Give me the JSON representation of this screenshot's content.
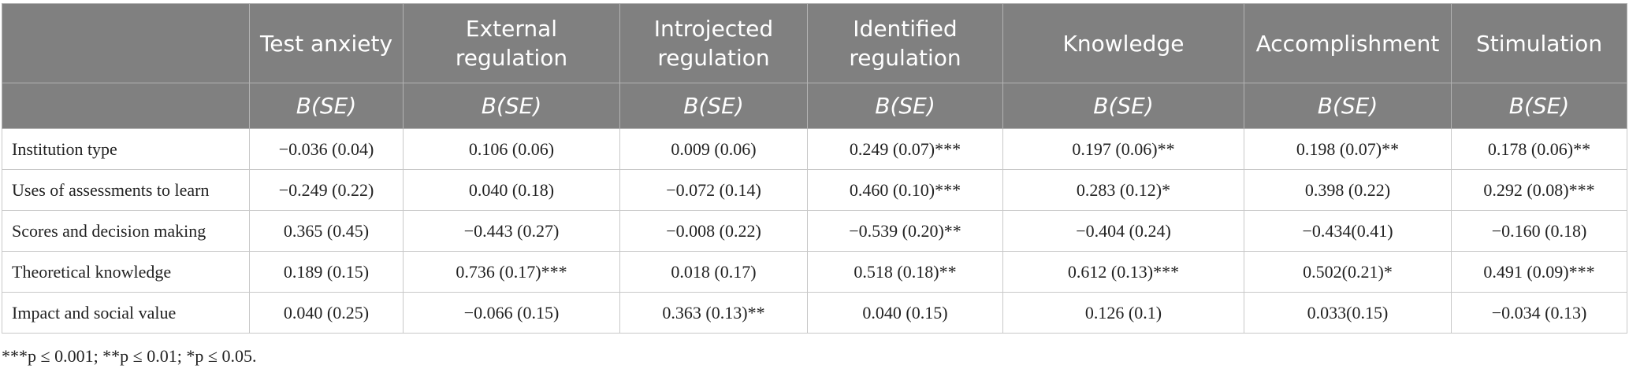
{
  "table": {
    "columns": [
      "Test anxiety",
      "External regulation",
      "Introjected regulation",
      "Identified regulation",
      "Knowledge",
      "Accomplishment",
      "Stimulation"
    ],
    "subheader": [
      "B(SE)",
      "B(SE)",
      "B(SE)",
      "B(SE)",
      "B(SE)",
      "B(SE)",
      "B(SE)"
    ],
    "rows": [
      {
        "label": "Institution type",
        "cells": [
          "−0.036 (0.04)",
          "0.106 (0.06)",
          "0.009 (0.06)",
          "0.249 (0.07)***",
          "0.197 (0.06)**",
          "0.198 (0.07)**",
          "0.178 (0.06)**"
        ]
      },
      {
        "label": "Uses of assessments to learn",
        "cells": [
          "−0.249 (0.22)",
          "0.040 (0.18)",
          "−0.072 (0.14)",
          "0.460 (0.10)***",
          "0.283 (0.12)*",
          "0.398 (0.22)",
          "0.292 (0.08)***"
        ]
      },
      {
        "label": "Scores and decision making",
        "cells": [
          "0.365 (0.45)",
          "−0.443 (0.27)",
          "−0.008 (0.22)",
          "−0.539 (0.20)**",
          "−0.404 (0.24)",
          "−0.434(0.41)",
          "−0.160 (0.18)"
        ]
      },
      {
        "label": "Theoretical knowledge",
        "cells": [
          "0.189 (0.15)",
          "0.736 (0.17)***",
          "0.018 (0.17)",
          "0.518 (0.18)**",
          "0.612 (0.13)***",
          "0.502(0.21)*",
          "0.491 (0.09)***"
        ]
      },
      {
        "label": "Impact and social value",
        "cells": [
          "0.040 (0.25)",
          "−0.066 (0.15)",
          "0.363 (0.13)**",
          "0.040 (0.15)",
          "0.126 (0.1)",
          "0.033(0.15)",
          "−0.034 (0.13)"
        ]
      }
    ],
    "footnote": "***p ≤ 0.001; **p ≤ 0.01; *p ≤ 0.05."
  }
}
